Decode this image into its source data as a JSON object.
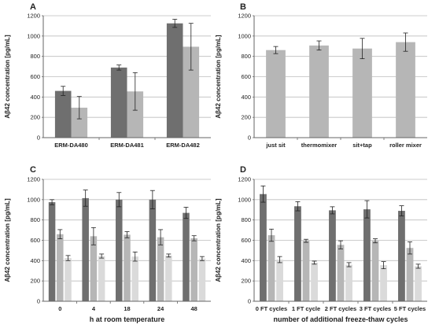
{
  "colors": {
    "dark": "#6f6f6f",
    "mid": "#b6b6b6",
    "light": "#dadada",
    "grid": "#bdbdbd",
    "axis": "#666666"
  },
  "chart_data": [
    {
      "panel": "A",
      "type": "bar",
      "categories": [
        "ERM-DA480",
        "ERM-DA481",
        "ERM-DA482"
      ],
      "series": [
        {
          "values": [
            460,
            690,
            1125
          ],
          "errors": [
            45,
            25,
            40
          ],
          "color": "#6f6f6f"
        },
        {
          "values": [
            295,
            455,
            895
          ],
          "errors": [
            110,
            185,
            230
          ],
          "color": "#b6b6b6"
        }
      ],
      "ylabel": "Aβ42 concentration [pg/mL]",
      "xlabel": "",
      "ylim": [
        0,
        1200
      ],
      "yticks": [
        0,
        200,
        400,
        600,
        800,
        1000,
        1200
      ],
      "grid": true
    },
    {
      "panel": "B",
      "type": "bar",
      "categories": [
        "just sit",
        "thermomixer",
        "sit+tap",
        "roller mixer"
      ],
      "series": [
        {
          "values": [
            862,
            907,
            877,
            940
          ],
          "errors": [
            35,
            45,
            100,
            90
          ],
          "color": "#b6b6b6"
        }
      ],
      "ylabel": "Aβ42 concentration [pg/mL]",
      "xlabel": "",
      "ylim": [
        0,
        1200
      ],
      "yticks": [
        0,
        200,
        400,
        600,
        800,
        1000,
        1200
      ],
      "grid": true
    },
    {
      "panel": "C",
      "type": "bar",
      "categories": [
        "0",
        "4",
        "18",
        "24",
        "48"
      ],
      "series": [
        {
          "values": [
            975,
            1015,
            1000,
            1000,
            870
          ],
          "errors": [
            25,
            80,
            70,
            90,
            55
          ],
          "color": "#6f6f6f"
        },
        {
          "values": [
            660,
            640,
            655,
            630,
            620
          ],
          "errors": [
            45,
            85,
            30,
            75,
            25
          ],
          "color": "#b6b6b6"
        },
        {
          "values": [
            425,
            445,
            440,
            450,
            420
          ],
          "errors": [
            25,
            20,
            45,
            15,
            20
          ],
          "color": "#dadada"
        }
      ],
      "ylabel": "Aβ42 concentration [pg/mL]",
      "xlabel": "h at room temperature",
      "ylim": [
        0,
        1200
      ],
      "yticks": [
        0,
        200,
        400,
        600,
        800,
        1000,
        1200
      ],
      "grid": true
    },
    {
      "panel": "D",
      "type": "bar",
      "categories": [
        "0 FT cycles",
        "1 FT cycle",
        "2 FT cycles",
        "3 FT cycles",
        "5 FT cycles"
      ],
      "series": [
        {
          "values": [
            1055,
            935,
            895,
            905,
            890
          ],
          "errors": [
            80,
            45,
            35,
            85,
            50
          ],
          "color": "#6f6f6f"
        },
        {
          "values": [
            650,
            595,
            555,
            595,
            525
          ],
          "errors": [
            60,
            15,
            40,
            20,
            60
          ],
          "color": "#b6b6b6"
        },
        {
          "values": [
            410,
            380,
            360,
            355,
            345
          ],
          "errors": [
            30,
            15,
            20,
            35,
            20
          ],
          "color": "#dadada"
        }
      ],
      "ylabel": "Aβ42 concentration [pg/mL]",
      "xlabel": "number of additional freeze-thaw cycles",
      "ylim": [
        0,
        1200
      ],
      "yticks": [
        0,
        200,
        400,
        600,
        800,
        1000,
        1200
      ],
      "grid": true
    }
  ]
}
